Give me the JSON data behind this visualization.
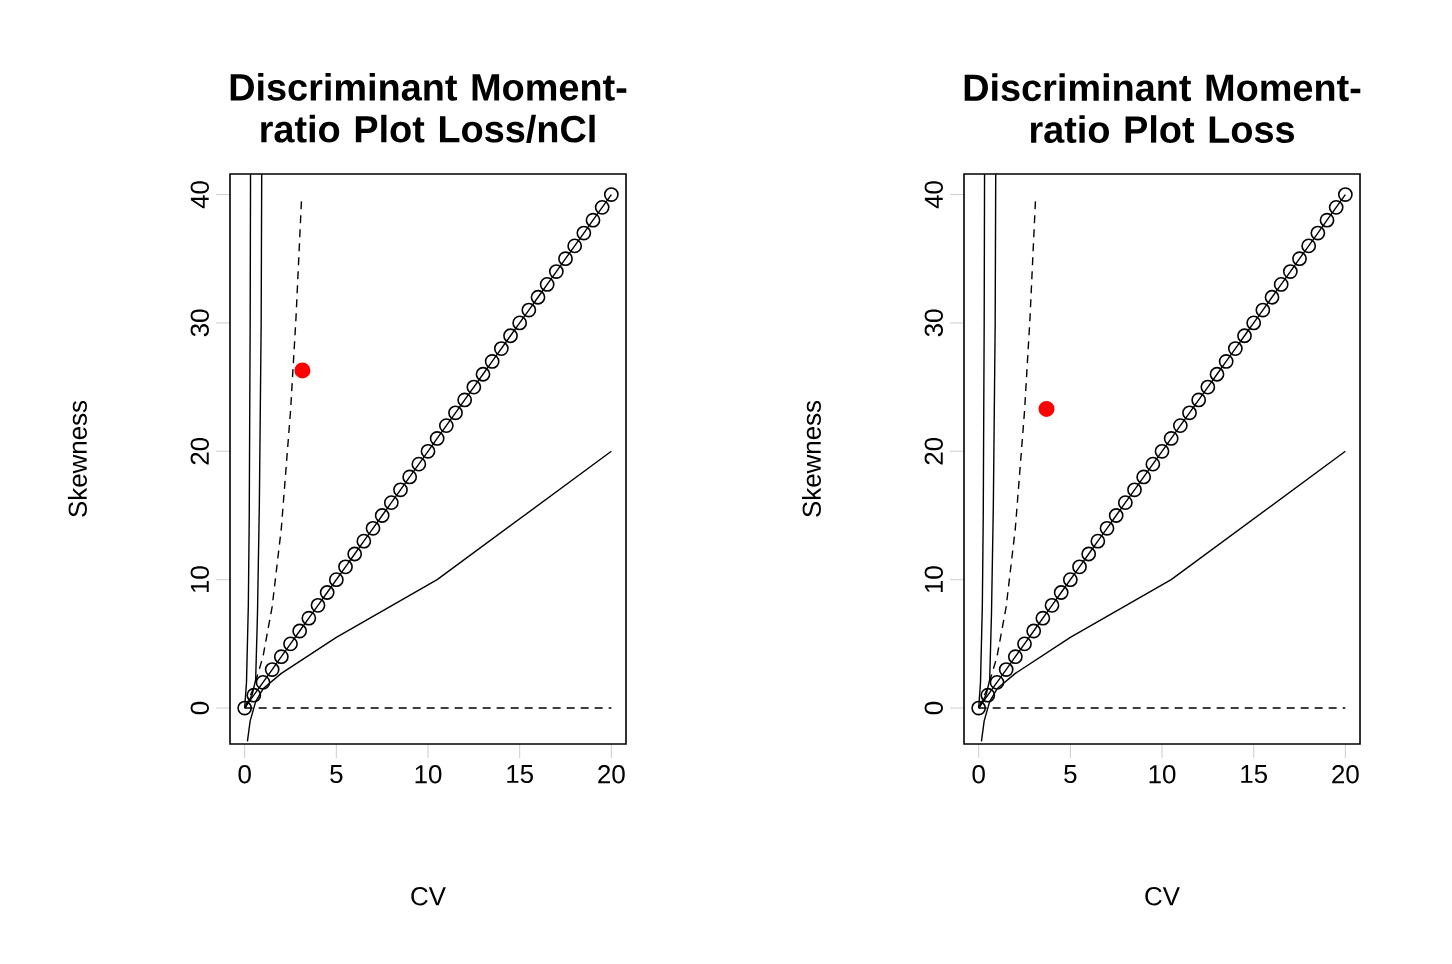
{
  "chart_data": [
    {
      "type": "line",
      "title": "Discriminant Moment-ratio Plot Loss/nCl",
      "xlabel": "CV",
      "ylabel": "Skewness",
      "xlim": [
        -0.8,
        20.8
      ],
      "ylim": [
        -2.8,
        41.6
      ],
      "xticks": [
        0,
        5,
        10,
        15,
        20
      ],
      "yticks": [
        0,
        10,
        20,
        30,
        40
      ],
      "series": [
        {
          "color": "#000000",
          "marker": "circle",
          "line_style": "solid",
          "x": [
            0,
            0.5,
            1,
            1.5,
            2,
            2.5,
            3,
            3.5,
            4,
            4.5,
            5,
            5.5,
            6,
            6.5,
            7,
            7.5,
            8,
            8.5,
            9,
            9.5,
            10,
            10.5,
            11,
            11.5,
            12,
            12.5,
            13,
            13.5,
            14,
            14.5,
            15,
            15.5,
            16,
            16.5,
            17,
            17.5,
            18,
            18.5,
            19,
            19.5,
            20
          ],
          "values": [
            0,
            1,
            2,
            3,
            4,
            5,
            6,
            7,
            8,
            9,
            10,
            11,
            12,
            13,
            14,
            15,
            16,
            17,
            18,
            19,
            20,
            21,
            22,
            23,
            24,
            25,
            26,
            27,
            28,
            29,
            30,
            31,
            32,
            33,
            34,
            35,
            36,
            37,
            38,
            39,
            40
          ]
        },
        {
          "color": "#000000",
          "marker": "none",
          "line_style": "solid",
          "x": [
            0.15,
            0.3,
            0.6,
            1,
            2,
            5,
            10.5,
            20
          ],
          "values": [
            -2.6,
            -1,
            0.5,
            1.5,
            2.7,
            5.5,
            10,
            20
          ]
        },
        {
          "color": "#000000",
          "marker": "none",
          "line_style": "dashed",
          "x": [
            0,
            20
          ],
          "values": [
            0,
            0
          ]
        },
        {
          "color": "#000000",
          "marker": "none",
          "line_style": "dashed",
          "x": [
            0,
            0.5,
            1,
            1.5,
            2,
            2.5,
            2.8,
            3.1
          ],
          "values": [
            0,
            1.6,
            4,
            7.9,
            14,
            23.1,
            30.4,
            39.6
          ]
        },
        {
          "color": "#000000",
          "marker": "none",
          "line_style": "solid",
          "x": [
            0,
            0.1,
            0.2,
            0.25,
            0.3,
            0.32
          ],
          "values": [
            0,
            2,
            8,
            15,
            30,
            41.6
          ]
        },
        {
          "color": "#000000",
          "marker": "none",
          "line_style": "solid",
          "x": [
            0,
            0.4,
            0.6,
            0.7,
            0.8,
            0.9,
            0.93
          ],
          "values": [
            0,
            1,
            2.2,
            7.4,
            15.8,
            30,
            41.6
          ]
        },
        {
          "type": "scatter",
          "color": "#ff0000",
          "marker": "circle",
          "x": [
            3.15
          ],
          "values": [
            26.3
          ]
        }
      ]
    },
    {
      "type": "line",
      "title": "Discriminant Moment-ratio Plot Loss",
      "xlabel": "CV",
      "ylabel": "Skewness",
      "xlim": [
        -0.8,
        20.8
      ],
      "ylim": [
        -2.8,
        41.6
      ],
      "xticks": [
        0,
        5,
        10,
        15,
        20
      ],
      "yticks": [
        0,
        10,
        20,
        30,
        40
      ],
      "series": [
        {
          "color": "#000000",
          "marker": "circle",
          "line_style": "solid",
          "x": [
            0,
            0.5,
            1,
            1.5,
            2,
            2.5,
            3,
            3.5,
            4,
            4.5,
            5,
            5.5,
            6,
            6.5,
            7,
            7.5,
            8,
            8.5,
            9,
            9.5,
            10,
            10.5,
            11,
            11.5,
            12,
            12.5,
            13,
            13.5,
            14,
            14.5,
            15,
            15.5,
            16,
            16.5,
            17,
            17.5,
            18,
            18.5,
            19,
            19.5,
            20
          ],
          "values": [
            0,
            1,
            2,
            3,
            4,
            5,
            6,
            7,
            8,
            9,
            10,
            11,
            12,
            13,
            14,
            15,
            16,
            17,
            18,
            19,
            20,
            21,
            22,
            23,
            24,
            25,
            26,
            27,
            28,
            29,
            30,
            31,
            32,
            33,
            34,
            35,
            36,
            37,
            38,
            39,
            40
          ]
        },
        {
          "color": "#000000",
          "marker": "none",
          "line_style": "solid",
          "x": [
            0.15,
            0.3,
            0.6,
            1,
            2,
            5,
            10.5,
            20
          ],
          "values": [
            -2.6,
            -1,
            0.5,
            1.5,
            2.7,
            5.5,
            10,
            20
          ]
        },
        {
          "color": "#000000",
          "marker": "none",
          "line_style": "dashed",
          "x": [
            0,
            20
          ],
          "values": [
            0,
            0
          ]
        },
        {
          "color": "#000000",
          "marker": "none",
          "line_style": "dashed",
          "x": [
            0,
            0.5,
            1,
            1.5,
            2,
            2.5,
            2.8,
            3.1
          ],
          "values": [
            0,
            1.6,
            4,
            7.9,
            14,
            23.1,
            30.4,
            39.6
          ]
        },
        {
          "color": "#000000",
          "marker": "none",
          "line_style": "solid",
          "x": [
            0,
            0.1,
            0.2,
            0.25,
            0.3,
            0.32
          ],
          "values": [
            0,
            2,
            8,
            15,
            30,
            41.6
          ]
        },
        {
          "color": "#000000",
          "marker": "none",
          "line_style": "solid",
          "x": [
            0,
            0.4,
            0.6,
            0.7,
            0.8,
            0.9,
            0.93
          ],
          "values": [
            0,
            1,
            2.2,
            7.4,
            15.8,
            30,
            41.6
          ]
        },
        {
          "type": "scatter",
          "color": "#ff0000",
          "marker": "circle",
          "x": [
            3.7
          ],
          "values": [
            23.3
          ]
        }
      ]
    }
  ]
}
